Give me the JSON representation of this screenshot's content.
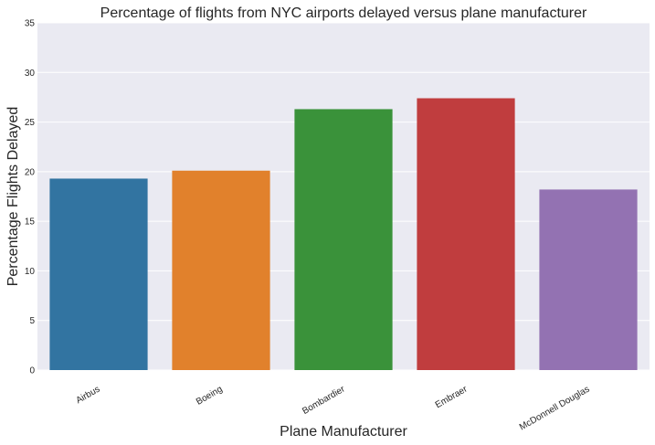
{
  "chart_data": {
    "type": "bar",
    "title": "Percentage of flights from NYC airports delayed versus plane manufacturer",
    "xlabel": "Plane Manufacturer",
    "ylabel": "Percentage Flights Delayed",
    "categories": [
      "Airbus",
      "Boeing",
      "Bombardier",
      "Embraer",
      "McDonnell Douglas"
    ],
    "values": [
      19.3,
      20.1,
      26.3,
      27.4,
      18.2
    ],
    "colors": [
      "#3274a1",
      "#e1812c",
      "#3a923a",
      "#c03d3e",
      "#9372b2"
    ],
    "ylim": [
      0,
      35
    ],
    "yticks": [
      0,
      5,
      10,
      15,
      20,
      25,
      30,
      35
    ],
    "grid": true,
    "background": "#eaeaf2"
  }
}
